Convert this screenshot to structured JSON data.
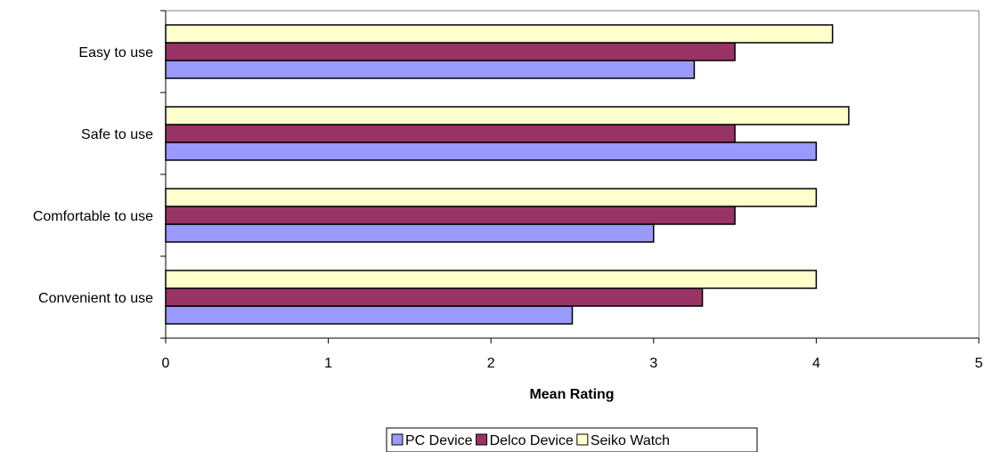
{
  "chart_data": {
    "type": "bar",
    "orientation": "horizontal",
    "categories": [
      "Easy to use",
      "Safe to use",
      "Comfortable to use",
      "Convenient to use"
    ],
    "series": [
      {
        "name": "PC Device",
        "color": "#9999ff",
        "values": [
          3.25,
          4.0,
          3.0,
          2.5
        ]
      },
      {
        "name": "Delco Device",
        "color": "#993366",
        "values": [
          3.5,
          3.5,
          3.5,
          3.3
        ]
      },
      {
        "name": "Seiko Watch",
        "color": "#ffffcc",
        "values": [
          4.1,
          4.2,
          4.0,
          4.0
        ]
      }
    ],
    "xlabel": "Mean Rating",
    "xlim": [
      0,
      5
    ],
    "xticks": [
      "0",
      "1",
      "2",
      "3",
      "4",
      "5"
    ],
    "grid": false,
    "legend": "bottom"
  }
}
